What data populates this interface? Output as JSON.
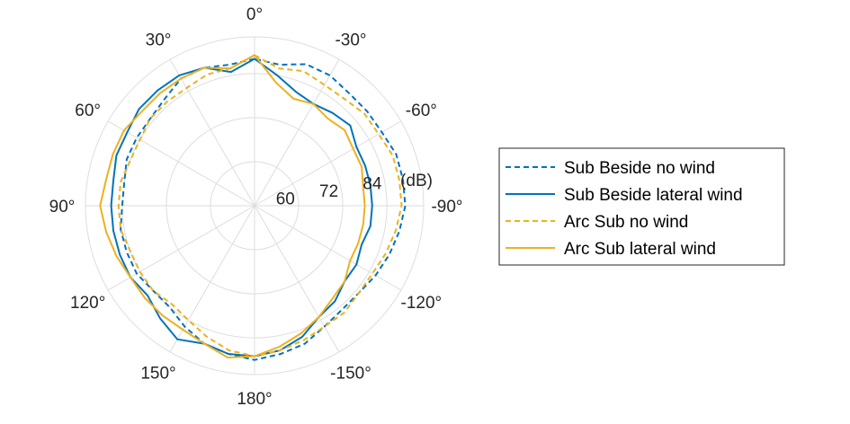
{
  "chart_data": {
    "type": "polar-line",
    "theta_zero": "top",
    "theta_direction": "counterclockwise",
    "r_ticks": [
      {
        "value": 60,
        "label": "60"
      },
      {
        "value": 72,
        "label": "72"
      },
      {
        "value": 84,
        "label": "84"
      }
    ],
    "r_unit": "(dB)",
    "rlim": [
      48,
      94
    ],
    "theta_ticks": [
      {
        "angle": 0,
        "label": "0°"
      },
      {
        "angle": 30,
        "label": "30°"
      },
      {
        "angle": 60,
        "label": "60°"
      },
      {
        "angle": 90,
        "label": "90°"
      },
      {
        "angle": 120,
        "label": "120°"
      },
      {
        "angle": 150,
        "label": "150°"
      },
      {
        "angle": 180,
        "label": "180°"
      },
      {
        "angle": -150,
        "label": "-150°"
      },
      {
        "angle": -120,
        "label": "-120°"
      },
      {
        "angle": -90,
        "label": "-90°"
      },
      {
        "angle": -60,
        "label": "-60°"
      },
      {
        "angle": -30,
        "label": "-30°"
      }
    ],
    "theta": [
      0,
      10,
      20,
      30,
      40,
      50,
      60,
      70,
      80,
      90,
      100,
      110,
      120,
      130,
      140,
      150,
      160,
      170,
      180,
      -170,
      -160,
      -150,
      -140,
      -130,
      -120,
      -110,
      -100,
      -90,
      -80,
      -70,
      -60,
      -50,
      -40,
      -30,
      -20,
      -10
    ],
    "series": [
      {
        "name": "Sub Beside no wind",
        "color": "#0072BD",
        "style": "dashed",
        "r": [
          88,
          87,
          88,
          88,
          86,
          85,
          85,
          85,
          84,
          84,
          85,
          85,
          85,
          84,
          84,
          86,
          88,
          89,
          90,
          89,
          88,
          86,
          85,
          85,
          86,
          87,
          88,
          89,
          89,
          89,
          88,
          88,
          88,
          89,
          89,
          87
        ]
      },
      {
        "name": "Sub Beside lateral wind",
        "color": "#0072BD",
        "style": "solid",
        "r": [
          88,
          85,
          88,
          89,
          89,
          89,
          88,
          88,
          87,
          87,
          87,
          87,
          87,
          86,
          88,
          90,
          88,
          89,
          89,
          88,
          86,
          83,
          82,
          80,
          80,
          79,
          80,
          80,
          80,
          80,
          80,
          82,
          81,
          80,
          81,
          84
        ]
      },
      {
        "name": "Arc Sub no wind",
        "color": "#EDB120",
        "style": "dashed",
        "r": [
          89,
          86,
          86,
          85,
          85,
          85,
          84,
          84,
          85,
          85,
          85,
          84,
          84,
          84,
          83,
          84,
          86,
          88,
          89,
          88,
          87,
          86,
          86,
          85,
          85,
          86,
          87,
          88,
          88,
          88,
          87,
          87,
          86,
          86,
          87,
          86
        ]
      },
      {
        "name": "Arc Sub lateral wind",
        "color": "#EDB120",
        "style": "solid",
        "r": [
          89,
          86,
          88,
          88,
          88,
          88,
          89,
          89,
          89,
          90,
          89,
          88,
          87,
          87,
          87,
          87,
          88,
          90,
          89,
          87,
          85,
          83,
          81,
          80,
          78,
          78,
          78,
          78,
          78,
          79,
          79,
          80,
          79,
          80,
          79,
          82
        ]
      }
    ],
    "grid": true,
    "legend_position": "right"
  }
}
